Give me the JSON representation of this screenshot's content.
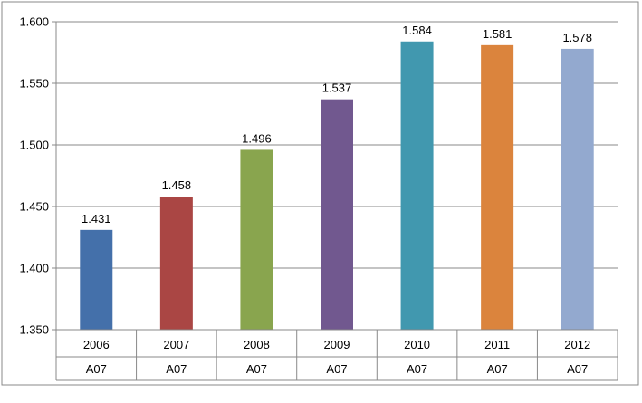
{
  "chart_data": {
    "type": "bar",
    "categories": [
      "2006",
      "2007",
      "2008",
      "2009",
      "2010",
      "2011",
      "2012"
    ],
    "category_sublabels": [
      "A07",
      "A07",
      "A07",
      "A07",
      "A07",
      "A07",
      "A07"
    ],
    "values": [
      1.431,
      1.458,
      1.496,
      1.537,
      1.584,
      1.581,
      1.578
    ],
    "value_labels": [
      "1.431",
      "1.458",
      "1.496",
      "1.537",
      "1.584",
      "1.581",
      "1.578"
    ],
    "ylim": [
      1.35,
      1.6
    ],
    "yticks": [
      1.35,
      1.4,
      1.45,
      1.5,
      1.55,
      1.6
    ],
    "ytick_labels": [
      "1.350",
      "1.400",
      "1.450",
      "1.500",
      "1.550",
      "1.600"
    ],
    "colors": [
      "#4470AA",
      "#AA4644",
      "#89A54E",
      "#71588F",
      "#4198AF",
      "#DB843D",
      "#93A9CF"
    ],
    "grid": true,
    "legend": false
  }
}
